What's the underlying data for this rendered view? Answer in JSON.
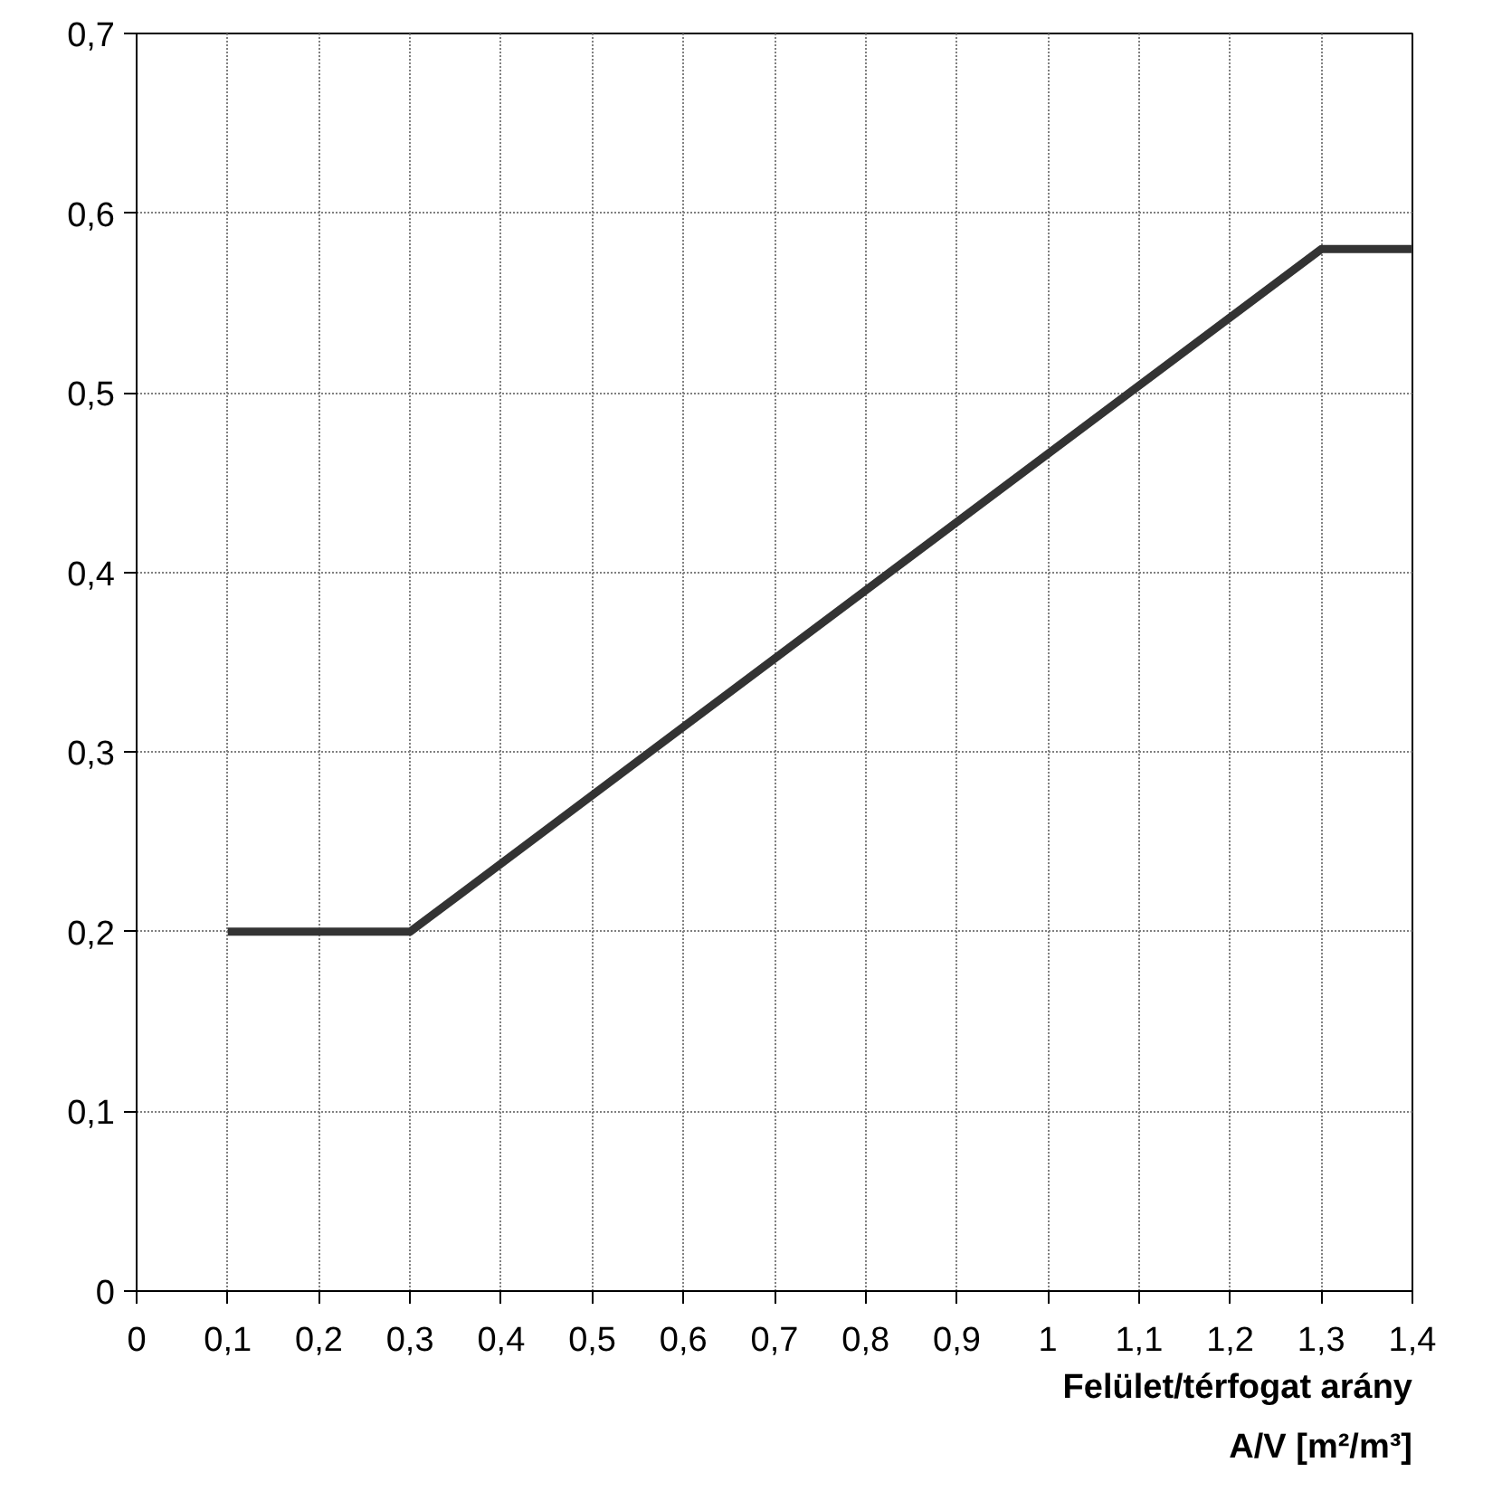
{
  "chart_data": {
    "type": "line",
    "xlabel": "Felület/térfogat arány\nA/V [m²/m³]",
    "x": [
      0.1,
      0.3,
      1.3,
      1.4
    ],
    "series": [
      {
        "color": "#333333",
        "values": [
          0.2,
          0.2,
          0.58,
          0.58
        ]
      }
    ],
    "xlim": [
      0,
      1.4
    ],
    "ylim": [
      0,
      0.7
    ],
    "xticks": [
      0,
      {
        "value": 0.1,
        "label": "0,1"
      },
      {
        "value": 0.2,
        "label": "0,2"
      },
      {
        "value": 0.3,
        "label": "0,3"
      },
      {
        "value": 0.4,
        "label": "0,4"
      },
      {
        "value": 0.5,
        "label": "0,5"
      },
      {
        "value": 0.6,
        "label": "0,6"
      },
      {
        "value": 0.7,
        "label": "0,7"
      },
      {
        "value": 0.8,
        "label": "0,8"
      },
      {
        "value": 0.9,
        "label": "0,9"
      },
      1,
      {
        "value": 1.1,
        "label": "1,1"
      },
      {
        "value": 1.2,
        "label": "1,2"
      },
      {
        "value": 1.3,
        "label": "1,3"
      },
      {
        "value": 1.4,
        "label": "1,4"
      }
    ],
    "yticks": [
      0,
      {
        "value": 0.1,
        "label": "0,1"
      },
      {
        "value": 0.2,
        "label": "0,2"
      },
      {
        "value": 0.3,
        "label": "0,3"
      },
      {
        "value": 0.4,
        "label": "0,4"
      },
      {
        "value": 0.5,
        "label": "0,5"
      },
      {
        "value": 0.6,
        "label": "0,6"
      },
      {
        "value": 0.7,
        "label": "0,7"
      }
    ],
    "grid": true,
    "marker": "none",
    "line_style": "solid"
  }
}
